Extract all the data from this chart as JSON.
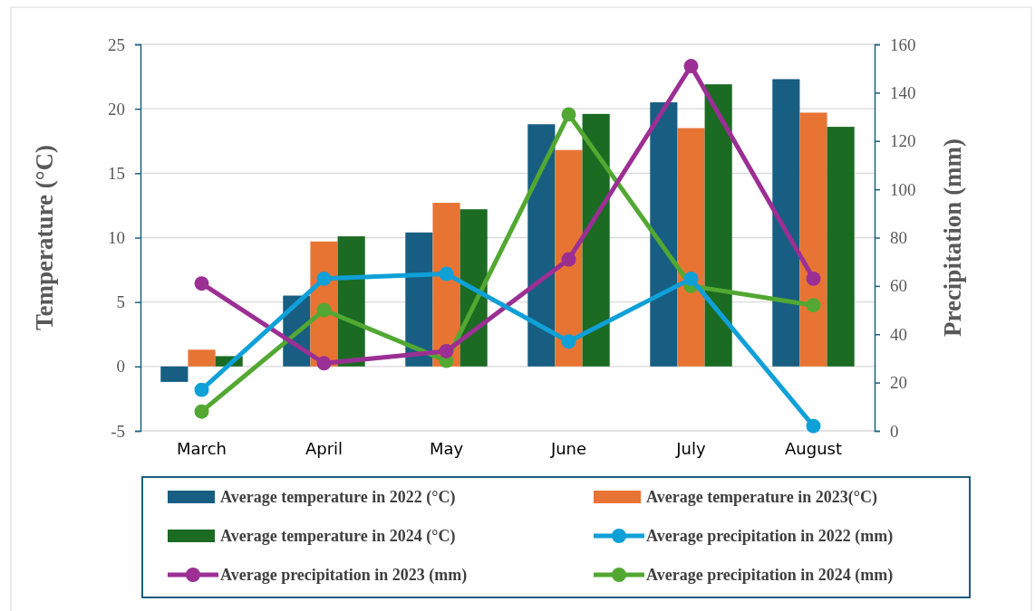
{
  "chart_data": {
    "type": "bar",
    "categories": [
      "March",
      "April",
      "May",
      "June",
      "July",
      "August"
    ],
    "ylabel": "Temperature (°C)",
    "y2label": "Precipitation (mm)",
    "ylim": [
      -5,
      25
    ],
    "yticks": [
      -5,
      0,
      5,
      10,
      15,
      20,
      25
    ],
    "y2lim": [
      0,
      160
    ],
    "y2ticks": [
      0,
      20,
      40,
      60,
      80,
      100,
      120,
      140,
      160
    ],
    "grid": "y",
    "legend": "bottom",
    "marker": "circle",
    "series": [
      {
        "name": "Average temperature in 2022 (°C)",
        "color": "#175e82",
        "values": [
          -1.2,
          5.5,
          10.4,
          18.8,
          20.5,
          22.3
        ]
      },
      {
        "name": "Average temperature in 2023(°C)",
        "color": "#e87434",
        "values": [
          1.3,
          9.7,
          12.7,
          16.8,
          18.5,
          19.7
        ]
      },
      {
        "name": "Average temperature in 2024 (°C)",
        "color": "#1b6b23",
        "values": [
          0.8,
          10.1,
          12.2,
          19.6,
          21.9,
          18.6
        ]
      },
      {
        "name": "Average precipitation in 2022 (mm)",
        "type": "line",
        "axis": "y2",
        "color": "#10a0d8",
        "values": [
          17,
          63,
          65,
          37,
          63,
          2
        ]
      },
      {
        "name": "Average precipitation in 2023 (mm)",
        "type": "line",
        "axis": "y2",
        "color": "#9b2f94",
        "values": [
          61,
          28,
          33,
          71,
          151,
          63
        ]
      },
      {
        "name": "Average precipitation in 2024 (mm)",
        "type": "line",
        "axis": "y2",
        "color": "#52a832",
        "values": [
          8,
          50,
          29,
          131,
          60,
          52
        ]
      }
    ]
  }
}
